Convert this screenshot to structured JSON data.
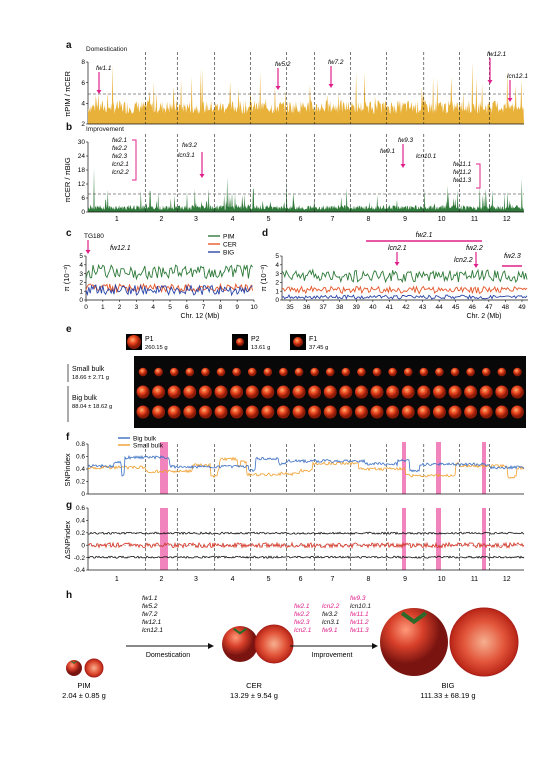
{
  "colors": {
    "domestication_fill": "#e8b13a",
    "improvement_fill": "#2f7a3a",
    "pim": "#2f7a3a",
    "cer": "#e3572a",
    "big": "#2a46a8",
    "big_bulk": "#3a6fc4",
    "small_bulk": "#f0a030",
    "highlight": "#ee6fb2",
    "arrow": "#e0208a"
  },
  "panels": {
    "a": {
      "letter": "a",
      "subtitle": "Domestication",
      "ylabel": "πPIM / πCER",
      "yticks": [
        "2",
        "4",
        "6",
        "8"
      ],
      "annotations": [
        "fw1.1",
        "fw5.2",
        "fw7.2",
        "fw12.1",
        "lcn12.1"
      ]
    },
    "b": {
      "letter": "b",
      "subtitle": "Improvement",
      "ylabel": "πCER / πBIG",
      "yticks": [
        "0",
        "6",
        "12",
        "18",
        "24",
        "30"
      ],
      "annotations_chr2": [
        "fw2.1",
        "fw2.2",
        "fw2.3",
        "lcn2.1",
        "lcn2.2"
      ],
      "annotations_chr3": [
        "fw3.2",
        "lcn3.1"
      ],
      "annotations_chr9": [
        "fw9.3",
        "fw9.1",
        "lcn10.1"
      ],
      "annotations_chr11": [
        "fw11.1",
        "fw11.2",
        "fw11.3"
      ],
      "chromosomes": [
        "1",
        "2",
        "3",
        "4",
        "5",
        "6",
        "7",
        "8",
        "9",
        "10",
        "11",
        "12"
      ]
    },
    "c": {
      "letter": "c",
      "ylabel": "π (10⁻³)",
      "xlabel": "Chr. 12 (Mb)",
      "xticks": [
        "0",
        "1",
        "2",
        "3",
        "4",
        "5",
        "6",
        "7",
        "8",
        "9",
        "10"
      ],
      "yticks": [
        "0",
        "1",
        "2",
        "3",
        "4",
        "5"
      ],
      "marker": "TG180",
      "locus": "fw12.1",
      "legend": [
        "PIM",
        "CER",
        "BIG"
      ]
    },
    "d": {
      "letter": "d",
      "ylabel": "π (10⁻³)",
      "xlabel": "Chr. 2 (Mb)",
      "xticks": [
        "35",
        "36",
        "37",
        "38",
        "39",
        "40",
        "41",
        "42",
        "43",
        "44",
        "45",
        "46",
        "47",
        "48",
        "49"
      ],
      "yticks": [
        "0",
        "1",
        "2",
        "3",
        "4",
        "5"
      ],
      "loci": [
        "fw2.1",
        "lcn2.1",
        "fw2.2",
        "lcn2.2",
        "fw2.3"
      ]
    },
    "e": {
      "letter": "e",
      "parents": [
        {
          "name": "P1",
          "weight": "260.15 g"
        },
        {
          "name": "P2",
          "weight": "13.61 g"
        },
        {
          "name": "F1",
          "weight": "37.45 g"
        }
      ],
      "small_bulk": {
        "label": "Small bulk",
        "weight": "18.66 ± 2.71 g"
      },
      "big_bulk": {
        "label": "Big bulk",
        "weight": "88.04 ± 18.62 g"
      }
    },
    "f": {
      "letter": "f",
      "ylabel": "SNPindex",
      "yticks": [
        "0",
        "0.2",
        "0.4",
        "0.6",
        "0.8"
      ],
      "legend": [
        "Big bulk",
        "Small bulk"
      ]
    },
    "g": {
      "letter": "g",
      "ylabel": "ΔSNPindex",
      "yticks": [
        "-0.4",
        "-0.2",
        "0",
        "0.2",
        "0.4",
        "0.6"
      ],
      "chromosomes": [
        "1",
        "2",
        "3",
        "4",
        "5",
        "6",
        "7",
        "8",
        "9",
        "10",
        "11",
        "12"
      ]
    },
    "h": {
      "letter": "h",
      "dom_loci": [
        "fw1.1",
        "fw5.2",
        "fw7.2",
        "fw12.1",
        "lcn12.1"
      ],
      "dom_label": "Domestication",
      "imp_label": "Improvement",
      "imp_col1": [
        "fw2.1",
        "fw2.2",
        "fw2.3",
        "lcn2.1"
      ],
      "imp_col2": [
        "lcn2.2",
        "fw3.2",
        "lcn3.1",
        "fw9.1"
      ],
      "imp_col3": [
        "fw9.3",
        "lcn10.1",
        "fw11.1",
        "fw11.2",
        "fw11.3"
      ],
      "stages": [
        {
          "name": "PIM",
          "weight": "2.04 ± 0.85 g"
        },
        {
          "name": "CER",
          "weight": "13.29 ± 9.54 g"
        },
        {
          "name": "BIG",
          "weight": "111.33 ± 68.19 g"
        }
      ]
    }
  }
}
